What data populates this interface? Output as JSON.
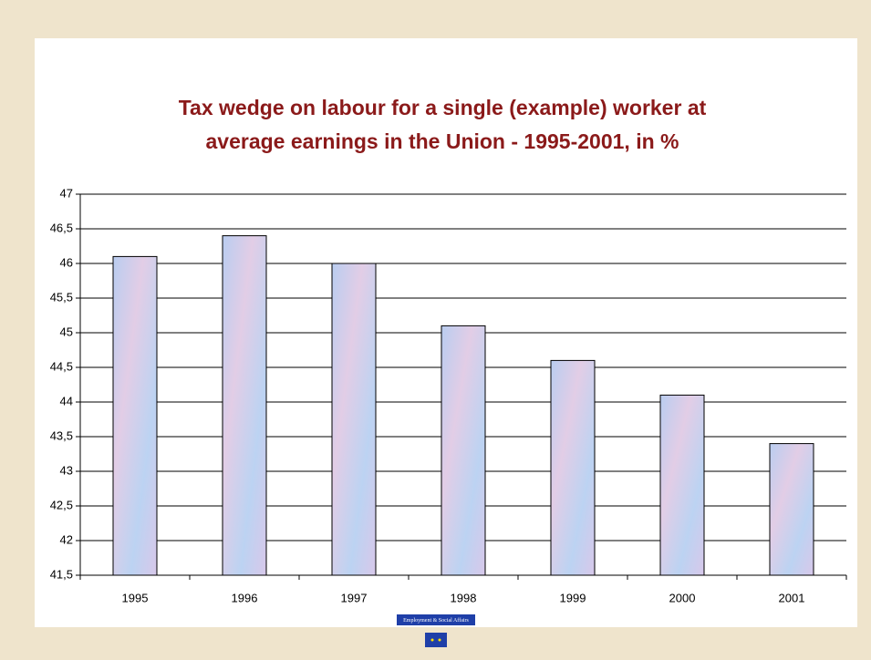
{
  "chart_data": {
    "type": "bar",
    "title": [
      "Tax wedge on labour for a single (example) worker at",
      "average earnings in the Union - 1995-2001, in %"
    ],
    "categories": [
      "1995",
      "1996",
      "1997",
      "1998",
      "1999",
      "2000",
      "2001"
    ],
    "values": [
      46.1,
      46.4,
      46.0,
      45.1,
      44.6,
      44.1,
      43.4
    ],
    "color": "#c4d4ef",
    "ylim": [
      41.5,
      47
    ],
    "yticks": [
      {
        "value": 41.5,
        "label": "41,5"
      },
      42,
      {
        "value": 42.5,
        "label": "42,5"
      },
      43,
      {
        "value": 43.5,
        "label": "43,5"
      },
      44,
      {
        "value": 44.5,
        "label": "44,5"
      },
      45,
      {
        "value": 45.5,
        "label": "45,5"
      },
      46,
      {
        "value": 46.5,
        "label": "46,5"
      },
      47
    ],
    "grid": true
  },
  "footer": {
    "label": "Employment & Social Affairs"
  }
}
